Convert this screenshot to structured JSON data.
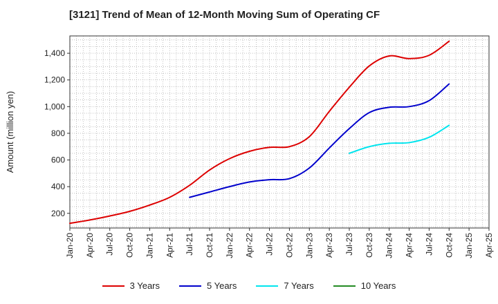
{
  "chart_data": {
    "type": "line",
    "title": "[3121]  Trend of Mean of 12-Month Moving Sum of Operating CF",
    "xlabel": "",
    "ylabel": "Amount (million yen)",
    "ylim": [
      90,
      1530
    ],
    "yticks": [
      200,
      400,
      600,
      800,
      "1,000",
      "1,200",
      "1,400"
    ],
    "yticks_values": [
      200,
      400,
      600,
      800,
      1000,
      1200,
      1400
    ],
    "x_tick_labels": [
      "Jan-20",
      "Apr-20",
      "Jul-20",
      "Oct-20",
      "Jan-21",
      "Apr-21",
      "Jul-21",
      "Oct-21",
      "Jan-22",
      "Apr-22",
      "Jul-22",
      "Oct-22",
      "Jan-23",
      "Apr-23",
      "Jul-23",
      "Oct-23",
      "Jan-24",
      "Apr-24",
      "Jul-24",
      "Oct-24",
      "Jan-25",
      "Apr-25"
    ],
    "x_range_months": [
      0,
      63
    ],
    "grid": true,
    "legend_position": "bottom",
    "series": [
      {
        "name": "3 Years",
        "color": "#dd0000",
        "x": [
          0,
          3,
          6,
          9,
          12,
          15,
          18,
          21,
          24,
          27,
          30,
          33,
          36,
          39,
          42,
          45,
          48,
          51,
          54,
          57
        ],
        "values": [
          125,
          150,
          180,
          215,
          262,
          320,
          410,
          525,
          610,
          665,
          695,
          700,
          775,
          965,
          1145,
          1305,
          1380,
          1360,
          1385,
          1490
        ]
      },
      {
        "name": "5 Years",
        "color": "#0000cc",
        "x": [
          18,
          21,
          24,
          27,
          30,
          33,
          36,
          39,
          42,
          45,
          48,
          51,
          54,
          57
        ],
        "values": [
          320,
          360,
          400,
          435,
          452,
          460,
          540,
          690,
          835,
          955,
          995,
          1000,
          1045,
          1170
        ]
      },
      {
        "name": "7 Years",
        "color": "#00e5ee",
        "x": [
          42,
          45,
          48,
          51,
          54,
          57
        ],
        "values": [
          650,
          700,
          725,
          730,
          770,
          860
        ]
      },
      {
        "name": "10 Years",
        "color": "#228b22",
        "x": [],
        "values": []
      }
    ]
  }
}
